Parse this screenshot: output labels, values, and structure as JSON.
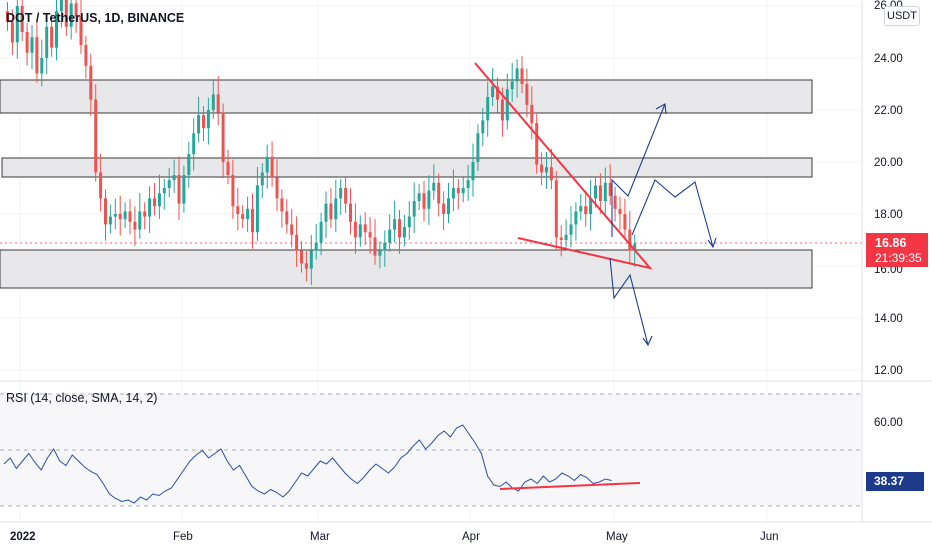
{
  "header": {
    "title": "DOT / TetherUS, 1D, BINANCE"
  },
  "price_axis": {
    "unit": "USDT",
    "ticks": [
      "26.00",
      "24.00",
      "22.00",
      "20.00",
      "18.00",
      "16.00",
      "14.00",
      "12.00"
    ],
    "last_price": "16.86",
    "countdown": "21:39:35"
  },
  "rsi": {
    "title": "RSI (14, close, SMA, 14, 2)",
    "ticks": [
      "60.00"
    ],
    "value": "38.37"
  },
  "time_axis": {
    "labels": [
      "2022",
      "Feb",
      "Mar",
      "Apr",
      "May",
      "Jun"
    ]
  },
  "colors": {
    "up": "#26a69a",
    "down": "#ef5350",
    "annotation_red": "#f23645",
    "annotation_blue": "#1e3f8f",
    "zone_fill": "#e8e8ea",
    "rsi_line": "#2c4fa3",
    "last_price_tag": "#f23645",
    "rsi_tag": "#1e3a8a"
  },
  "chart_data": {
    "type": "candlestick",
    "ylabel": "USDT",
    "ylim": [
      12,
      26
    ],
    "annotations": [
      "supply/demand zones near 22.0–23.2, 19.5–20.1, 15.3–16.5",
      "falling wedge / triangle",
      "projected paths up to ~22.3, down to ~13"
    ]
  }
}
